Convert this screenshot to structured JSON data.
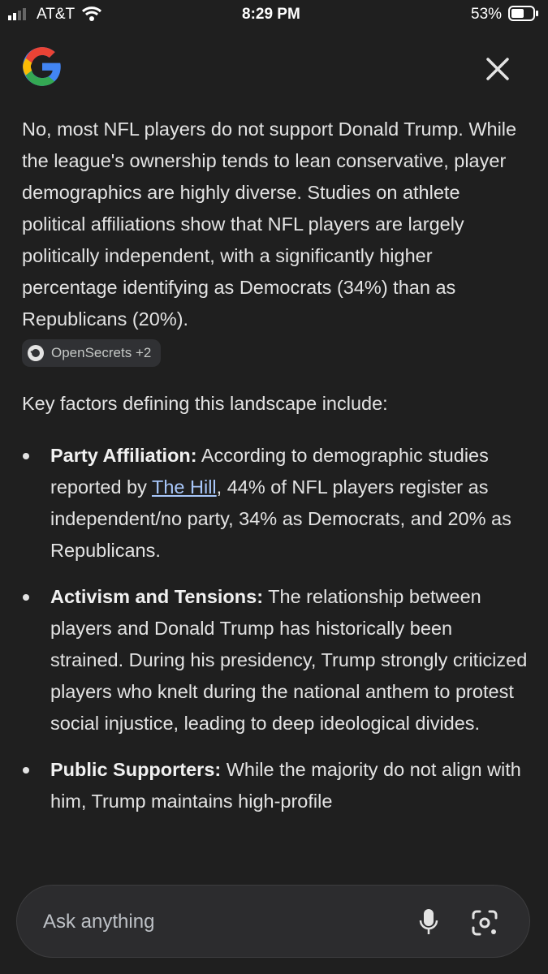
{
  "status_bar": {
    "carrier": "AT&T",
    "time": "8:29 PM",
    "battery": "53%"
  },
  "answer": {
    "paragraph": "No, most NFL players do not support Donald Trump. While the league's ownership tends to lean conservative, player demographics are highly diverse. Studies on athlete political affiliations show that NFL players are largely politically independent, with a significantly higher percentage identifying as Democrats (34%) than as Republicans (20%).",
    "source_chip": "OpenSecrets +2",
    "intro": "Key factors defining this landscape include:",
    "bullets": [
      {
        "title": "Party Affiliation:",
        "text": "According to demographic studies reported by",
        "link": "The Hill",
        "text_after": ", 44% of NFL players register as independent/no party, 34% as Democrats, and 20% as Republicans."
      },
      {
        "title": "Activism and Tensions:",
        "text": "The relationship between players and Donald Trump has historically been strained. During his presidency, Trump strongly criticized players who knelt during the national anthem to protest social injustice, leading to deep ideological divides."
      },
      {
        "title": "Public Supporters:",
        "text": "While the majority do not align with him, Trump maintains high-profile"
      }
    ]
  },
  "search": {
    "placeholder": "Ask anything"
  }
}
